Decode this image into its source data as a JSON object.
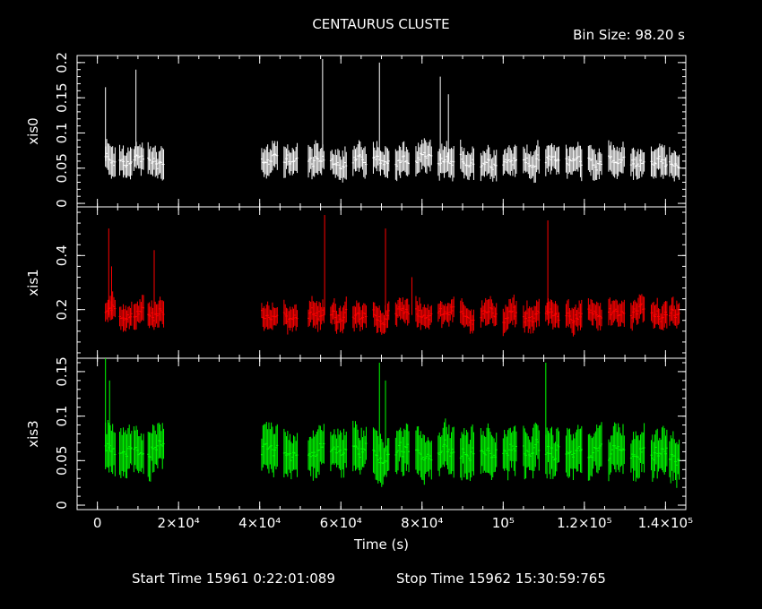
{
  "title": "CENTAURUS CLUSTE",
  "bin_size": "Bin Size: 98.20 s",
  "footer": {
    "start": "Start Time 15961  0:22:01:089",
    "stop": "Stop Time 15962 15:30:59:765"
  },
  "colors": {
    "xis0": "#ffffff",
    "xis1": "#ff0000",
    "xis3": "#00ff00",
    "axes": "#ffffff",
    "background": "#000000"
  },
  "chart_data": {
    "type": "scatter",
    "style": "light curve with vertical error bars, three stacked panels sharing x axis",
    "xlabel": "Time (s)",
    "xlim": [
      -5000,
      145000
    ],
    "x_ticks": [
      {
        "value": 0,
        "label": "0"
      },
      {
        "value": 20000,
        "label": "2×10⁴"
      },
      {
        "value": 40000,
        "label": "4×10⁴"
      },
      {
        "value": 60000,
        "label": "6×10⁴"
      },
      {
        "value": 80000,
        "label": "8×10⁴"
      },
      {
        "value": 100000,
        "label": "10⁵"
      },
      {
        "value": 120000,
        "label": "1.2×10⁵"
      },
      {
        "value": 140000,
        "label": "1.4×10⁵"
      }
    ],
    "observation_segments": [
      [
        2000,
        4500
      ],
      [
        5500,
        8500
      ],
      [
        9000,
        11500
      ],
      [
        12500,
        16500
      ],
      [
        40500,
        44500
      ],
      [
        46000,
        49500
      ],
      [
        52000,
        56000
      ],
      [
        57500,
        61500
      ],
      [
        63000,
        66500
      ],
      [
        68000,
        72000
      ],
      [
        73500,
        77000
      ],
      [
        78500,
        82500
      ],
      [
        84000,
        88000
      ],
      [
        89500,
        93000
      ],
      [
        94500,
        98500
      ],
      [
        100000,
        103500
      ],
      [
        105000,
        109000
      ],
      [
        110500,
        114000
      ],
      [
        115500,
        119500
      ],
      [
        121000,
        124500
      ],
      [
        126000,
        130000
      ],
      [
        131500,
        135000
      ],
      [
        136500,
        140500
      ],
      [
        141000,
        143500
      ]
    ],
    "panels": [
      {
        "name": "xis0",
        "ylabel": "xis0",
        "ylim": [
          -0.005,
          0.21
        ],
        "y_ticks": [
          {
            "value": 0,
            "label": "0"
          },
          {
            "value": 0.05,
            "label": "0.05"
          },
          {
            "value": 0.1,
            "label": "0.1"
          },
          {
            "value": 0.15,
            "label": "0.15"
          },
          {
            "value": 0.2,
            "label": "0.2"
          }
        ],
        "mean": 0.06,
        "spread": 0.012,
        "err": 0.018,
        "spikes": [
          [
            2000,
            0.165
          ],
          [
            9500,
            0.19
          ],
          [
            55500,
            0.205
          ],
          [
            69500,
            0.2
          ],
          [
            84500,
            0.18
          ],
          [
            86500,
            0.155
          ]
        ]
      },
      {
        "name": "xis1",
        "ylabel": "xis1",
        "ylim": [
          0.02,
          0.58
        ],
        "y_ticks": [
          {
            "value": 0.2,
            "label": "0.2"
          },
          {
            "value": 0.4,
            "label": "0.4"
          }
        ],
        "mean": 0.18,
        "spread": 0.035,
        "err": 0.04,
        "spikes": [
          [
            2800,
            0.5
          ],
          [
            3500,
            0.36
          ],
          [
            14000,
            0.42
          ],
          [
            56000,
            0.55
          ],
          [
            71000,
            0.5
          ],
          [
            77500,
            0.32
          ],
          [
            111000,
            0.53
          ]
        ]
      },
      {
        "name": "xis3",
        "ylabel": "xis3",
        "ylim": [
          -0.005,
          0.165
        ],
        "y_ticks": [
          {
            "value": 0,
            "label": "0"
          },
          {
            "value": 0.05,
            "label": "0.05"
          },
          {
            "value": 0.1,
            "label": "0.1"
          },
          {
            "value": 0.15,
            "label": "0.15"
          }
        ],
        "mean": 0.06,
        "spread": 0.013,
        "err": 0.022,
        "spikes": [
          [
            2000,
            0.165
          ],
          [
            3000,
            0.14
          ],
          [
            69500,
            0.16
          ],
          [
            71000,
            0.14
          ],
          [
            110500,
            0.16
          ]
        ]
      }
    ]
  }
}
